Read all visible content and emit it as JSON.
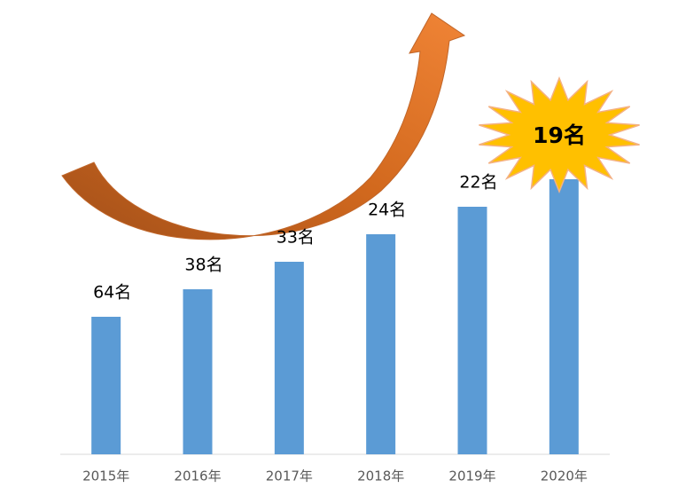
{
  "chart_data": {
    "type": "bar",
    "categories": [
      "2015年",
      "2016年",
      "2017年",
      "2018年",
      "2019年",
      "2020年"
    ],
    "values": [
      64,
      38,
      33,
      24,
      22,
      19
    ],
    "value_labels": [
      "64名",
      "38名",
      "33名",
      "24名",
      "22名",
      "19名"
    ],
    "color": "#5b9bd5"
  }
}
